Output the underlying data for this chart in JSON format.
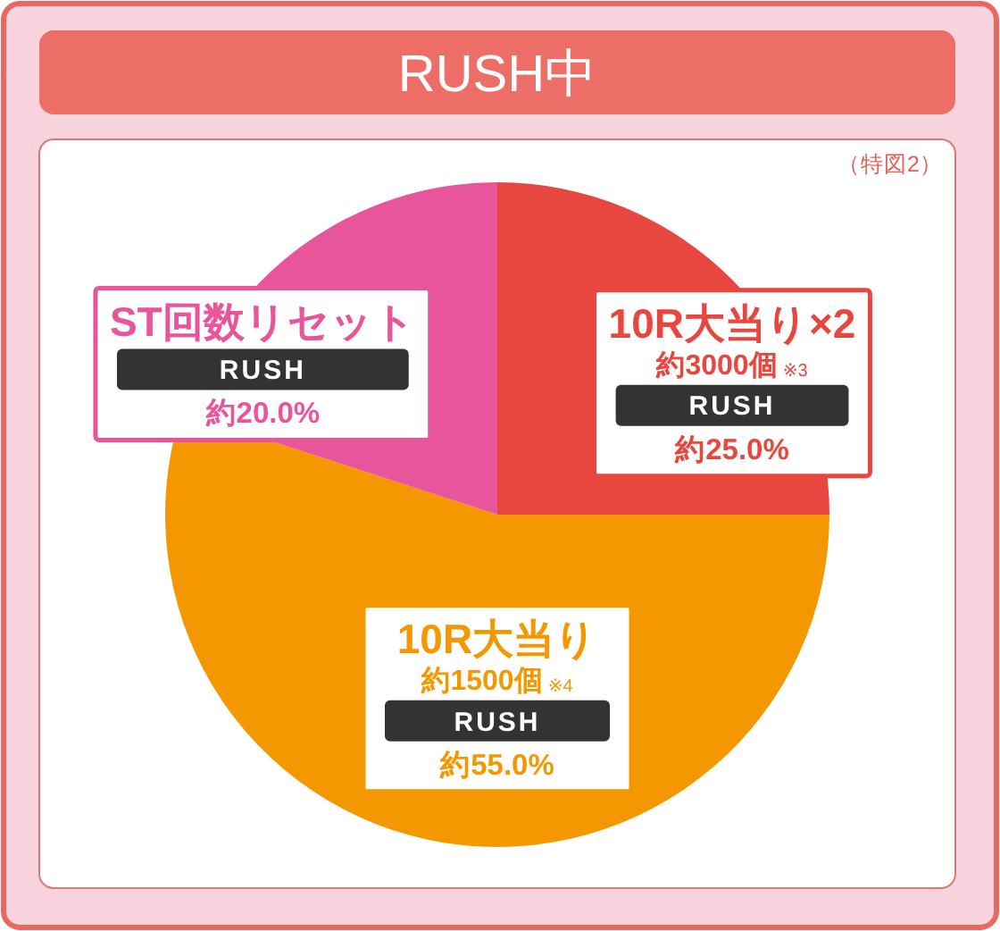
{
  "chart_data": {
    "type": "pie",
    "title": "RUSH中",
    "categories": [
      "10R大当り×2",
      "10R大当り",
      "ST回数リセット"
    ],
    "values": [
      25,
      55,
      20
    ],
    "colors": [
      "#e8473f",
      "#f39800",
      "#e8559b"
    ],
    "value_labels": [
      "約25.0%",
      "約55.0%",
      "約20.0%"
    ],
    "annotations": [
      "（特図2）",
      {
        "text": "約3000個$_{※3}$",
        "x": "10R大当り×2"
      },
      {
        "text": "RUSH",
        "x": "10R大当り×2"
      },
      {
        "text": "約1500個$_{※4}$",
        "x": "10R大当り"
      },
      {
        "text": "RUSH",
        "x": "10R大当り"
      },
      {
        "text": "RUSH",
        "x": "ST回数リセット"
      }
    ]
  }
}
